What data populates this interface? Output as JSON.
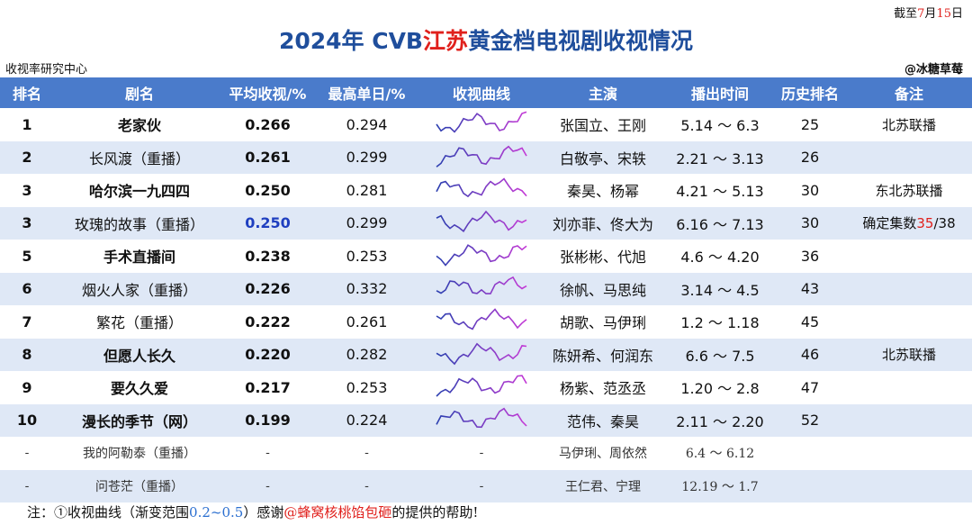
{
  "date_note": [
    "截至",
    "7",
    "月",
    "15",
    "日"
  ],
  "title": [
    "2024年 CVB",
    "江苏",
    "黄金档电视剧收视情况"
  ],
  "source": "收视率研究中心",
  "author": "@冰糖草莓",
  "table": {
    "header": [
      "排名",
      "剧名",
      "平均收视/%",
      "最高单日/%",
      "收视曲线",
      "主演",
      "播出时间",
      "历史排名",
      "备注"
    ],
    "rows": [
      {
        "rank": "1",
        "name": "老家伙",
        "avg": "0.266",
        "max": "0.294",
        "cast": "张国立、王刚",
        "period": "5.14 ～ 6.3",
        "history": "25",
        "note": [
          "北苏联播"
        ]
      },
      {
        "rank": "2",
        "name": "长风渡（重播）",
        "avg": "0.261",
        "max": "0.299",
        "cast": "白敬亭、宋轶",
        "period": "2.21 ～ 3.13",
        "history": "26"
      },
      {
        "rank": "3",
        "name": "哈尔滨一九四四",
        "avg": "0.250",
        "max": "0.281",
        "cast": "秦昊、杨幂",
        "period": "4.21 ～ 5.13",
        "history": "30",
        "note": [
          "东北苏联播"
        ]
      },
      {
        "rank": "3",
        "name": "玫瑰的故事（重播）",
        "avg": "0.250",
        "max": "0.299",
        "cast": "刘亦菲、佟大为",
        "period": "6.16 ～ 7.13",
        "history": "30",
        "note": [
          "确定集数",
          "35",
          "/38"
        ]
      },
      {
        "rank": "5",
        "name": "手术直播间",
        "avg": "0.238",
        "max": "0.253",
        "cast": "张彬彬、代旭",
        "period": "4.6 ～ 4.20",
        "history": "36"
      },
      {
        "rank": "6",
        "name": "烟火人家（重播）",
        "avg": "0.226",
        "max": "0.332",
        "cast": "徐帆、马思纯",
        "period": "3.14 ～ 4.5",
        "history": "43"
      },
      {
        "rank": "7",
        "name": "繁花（重播）",
        "avg": "0.222",
        "max": "0.261",
        "cast": "胡歌、马伊琍",
        "period": "1.2 ～ 1.18",
        "history": "45"
      },
      {
        "rank": "8",
        "name": "但愿人长久",
        "avg": "0.220",
        "max": "0.282",
        "cast": "陈妍希、何润东",
        "period": "6.6 ～ 7.5",
        "history": "46",
        "note": [
          "北苏联播"
        ]
      },
      {
        "rank": "9",
        "name": "要久久爱",
        "avg": "0.217",
        "max": "0.253",
        "cast": "杨紫、范丞丞",
        "period": "1.20 ～ 2.8",
        "history": "47"
      },
      {
        "rank": "10",
        "name": "漫长的季节（网）",
        "avg": "0.199",
        "max": "0.224",
        "cast": "范伟、秦昊",
        "period": "2.11 ～ 2.20",
        "history": "52"
      },
      {
        "rank": "-",
        "name": "我的阿勒泰（重播）",
        "avg": "-",
        "max": "-",
        "curve": "-",
        "cast": "马伊琍、周依然",
        "period": "6.4 ～ 6.12"
      },
      {
        "rank": "-",
        "name": "问苍茫（重播）",
        "avg": "-",
        "max": "-",
        "curve": "-",
        "cast": "王仁君、宁理",
        "period": "12.19 ～ 1.7"
      }
    ]
  },
  "footnote": [
    "注：",
    "①收视曲线（渐变范围",
    "0.2~0.5",
    "）感谢",
    "@蜂窝核桃馅包砸",
    "的提供的帮助!"
  ]
}
